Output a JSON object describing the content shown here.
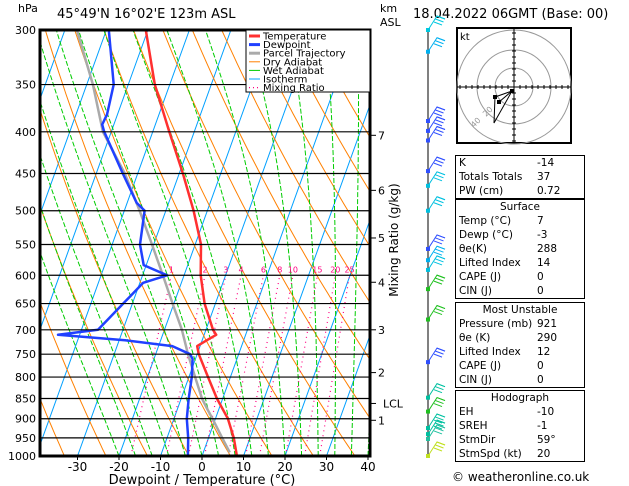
{
  "header": {
    "hpa_unit": "hPa",
    "location": "45°49'N  16°02'E  123m  ASL",
    "km_unit": "km",
    "asl_unit": "ASL",
    "datetime": "18.04.2022  06GMT  (Base: 00)"
  },
  "footer": {
    "copyright": "© weatheronline.co.uk"
  },
  "colors": {
    "temperature": "#ff3030",
    "dewpoint": "#2040ff",
    "parcel": "#aaaaaa",
    "dry_adiabat": "#ff8000",
    "wet_adiabat": "#00cc00",
    "isotherm": "#00a0ff",
    "mixing_ratio": "#ff0080"
  },
  "chart_data": {
    "type": "line",
    "title": "",
    "xlabel": "Dewpoint / Temperature (°C)",
    "ylabel": "hPa",
    "right_label": "Mixing Ratio (g/kg)",
    "x_ticks": [
      -30,
      -20,
      -10,
      0,
      10,
      20,
      30,
      40
    ],
    "xlim": [
      -38.8,
      40.6
    ],
    "pressure_levels": [
      300,
      350,
      400,
      450,
      500,
      550,
      600,
      650,
      700,
      750,
      800,
      850,
      900,
      950,
      1000
    ],
    "ylim": [
      1000,
      300
    ],
    "y_scale": "log",
    "skewed": true,
    "legend": {
      "position": "top-right",
      "entries": [
        "Temperature",
        "Dewpoint",
        "Parcel Trajectory",
        "Dry Adiabat",
        "Wet Adiabat",
        "Isotherm",
        "Mixing Ratio"
      ]
    },
    "mixing_ratio_labels": [
      1,
      2,
      3,
      4,
      6,
      8,
      10,
      15,
      20,
      25
    ],
    "km_labels": [
      {
        "label": "7",
        "p": 404
      },
      {
        "label": "6",
        "p": 472
      },
      {
        "label": "5",
        "p": 540
      },
      {
        "label": "4",
        "p": 612
      },
      {
        "label": "3",
        "p": 700
      },
      {
        "label": "2",
        "p": 790
      },
      {
        "label": "LCL",
        "p": 862
      },
      {
        "label": "1",
        "p": 904
      }
    ],
    "series": [
      {
        "name": "Temperature",
        "points": [
          [
            300,
            -50.5
          ],
          [
            350,
            -43.6
          ],
          [
            400,
            -36.0
          ],
          [
            450,
            -29.1
          ],
          [
            500,
            -23.3
          ],
          [
            550,
            -18.6
          ],
          [
            600,
            -16.0
          ],
          [
            650,
            -12.6
          ],
          [
            700,
            -8.3
          ],
          [
            710,
            -7.1
          ],
          [
            721,
            -8.9
          ],
          [
            733,
            -10.7
          ],
          [
            750,
            -9.6
          ],
          [
            800,
            -5.4
          ],
          [
            850,
            -1.4
          ],
          [
            900,
            3.0
          ],
          [
            950,
            6.1
          ],
          [
            1000,
            8.4
          ]
        ]
      },
      {
        "name": "Dewpoint",
        "points": [
          [
            300,
            -59.4
          ],
          [
            350,
            -53.5
          ],
          [
            381,
            -52.5
          ],
          [
            392,
            -52.8
          ],
          [
            400,
            -51.7
          ],
          [
            450,
            -43.6
          ],
          [
            489,
            -37.7
          ],
          [
            500,
            -35.1
          ],
          [
            550,
            -33.3
          ],
          [
            583,
            -30.6
          ],
          [
            600,
            -24.1
          ],
          [
            613,
            -29.2
          ],
          [
            700,
            -36.0
          ],
          [
            710,
            -45.2
          ],
          [
            721,
            -28.6
          ],
          [
            733,
            -16.7
          ],
          [
            750,
            -11.7
          ],
          [
            760,
            -10.7
          ],
          [
            800,
            -9.3
          ],
          [
            850,
            -8.2
          ],
          [
            900,
            -6.9
          ],
          [
            950,
            -4.9
          ],
          [
            1000,
            -3.4
          ]
        ]
      },
      {
        "name": "Parcel Trajectory",
        "points": [
          [
            300,
            -67.1
          ],
          [
            350,
            -58.5
          ],
          [
            400,
            -52.0
          ],
          [
            450,
            -43.1
          ],
          [
            500,
            -36.3
          ],
          [
            550,
            -30.4
          ],
          [
            600,
            -25.1
          ],
          [
            650,
            -20.3
          ],
          [
            700,
            -15.8
          ],
          [
            750,
            -12.2
          ],
          [
            800,
            -8.5
          ],
          [
            850,
            -5.0
          ],
          [
            878,
            -2.6
          ],
          [
            900,
            -0.7
          ],
          [
            950,
            3.3
          ],
          [
            990,
            6.4
          ]
        ]
      }
    ]
  },
  "wind_barbs": [
    {
      "p": 300,
      "color": "#00c8e0"
    },
    {
      "p": 319,
      "color": "#00b0f0"
    },
    {
      "p": 388,
      "color": "#3050ff"
    },
    {
      "p": 399,
      "color": "#3050ff"
    },
    {
      "p": 410,
      "color": "#3050ff"
    },
    {
      "p": 447,
      "color": "#3050ff"
    },
    {
      "p": 466,
      "color": "#00c0e0"
    },
    {
      "p": 500,
      "color": "#00c0e0"
    },
    {
      "p": 557,
      "color": "#3050ff"
    },
    {
      "p": 575,
      "color": "#00b0f0"
    },
    {
      "p": 591,
      "color": "#00c0e0"
    },
    {
      "p": 624,
      "color": "#20c020"
    },
    {
      "p": 680,
      "color": "#20c020"
    },
    {
      "p": 767,
      "color": "#3050ff"
    },
    {
      "p": 848,
      "color": "#00c0a0"
    },
    {
      "p": 882,
      "color": "#20c020"
    },
    {
      "p": 924,
      "color": "#00c0a0"
    },
    {
      "p": 940,
      "color": "#00c0a0"
    },
    {
      "p": 953,
      "color": "#20c0a0"
    },
    {
      "p": 1000,
      "color": "#c0e020"
    }
  ],
  "hodograph": {
    "unit": "kt",
    "ring_labels": [
      "20",
      "40"
    ]
  },
  "indices": {
    "rows": [
      [
        "K",
        "-14"
      ],
      [
        "Totals Totals",
        "37"
      ],
      [
        "PW (cm)",
        "0.72"
      ]
    ]
  },
  "surface": {
    "title": "Surface",
    "rows": [
      [
        "Temp (°C)",
        "7"
      ],
      [
        "Dewp (°C)",
        "-3"
      ],
      [
        "θe(K)",
        "288"
      ],
      [
        "Lifted Index",
        "14"
      ],
      [
        "CAPE (J)",
        "0"
      ],
      [
        "CIN (J)",
        "0"
      ]
    ]
  },
  "most_unstable": {
    "title": "Most Unstable",
    "rows": [
      [
        "Pressure (mb)",
        "921"
      ],
      [
        "θe (K)",
        "290"
      ],
      [
        "Lifted Index",
        "12"
      ],
      [
        "CAPE (J)",
        "0"
      ],
      [
        "CIN (J)",
        "0"
      ]
    ]
  },
  "hodograph_table": {
    "title": "Hodograph",
    "rows": [
      [
        "EH",
        "-10"
      ],
      [
        "SREH",
        "-1"
      ],
      [
        "StmDir",
        "59°"
      ],
      [
        "StmSpd (kt)",
        "20"
      ]
    ]
  }
}
